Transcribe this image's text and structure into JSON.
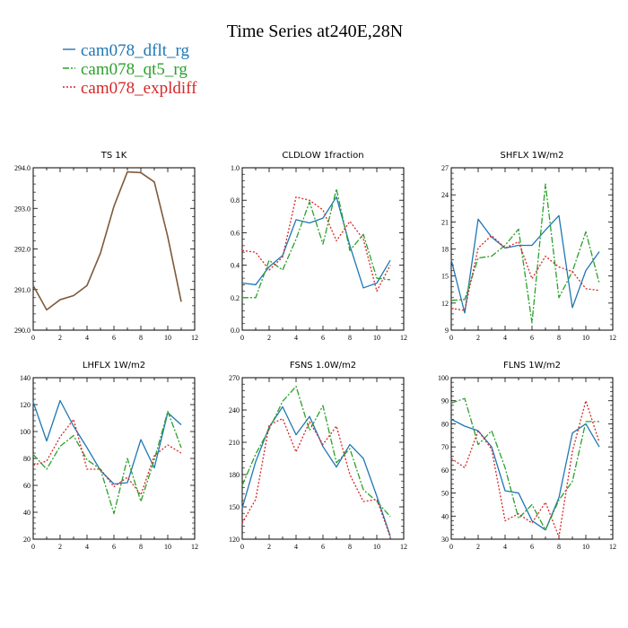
{
  "title": "Time Series at240E,28N",
  "legend": [
    {
      "label": "cam078_dflt_rg",
      "color": "#1f77b4",
      "dash": "solid"
    },
    {
      "label": "cam078_qt5_rg",
      "color": "#2ca02c",
      "dash": "dashdot"
    },
    {
      "label": "cam078_expldiff",
      "color": "#d62728",
      "dash": "dotted"
    }
  ],
  "chart_data": [
    {
      "type": "line",
      "title": "TS  1K",
      "x": [
        0,
        1,
        2,
        3,
        4,
        5,
        6,
        7,
        8,
        9,
        10,
        11
      ],
      "xlim": [
        0,
        12
      ],
      "xticks": [
        "0",
        "2",
        "4",
        "6",
        "8",
        "10",
        "12"
      ],
      "ylim": [
        290.0,
        294.0
      ],
      "yticks": [
        "290.0",
        "291.0",
        "292.0",
        "293.0",
        "294.0"
      ],
      "overlap_color": "#7f5a3a",
      "series": [
        {
          "name": "cam078_dflt_rg",
          "values": [
            291.1,
            290.5,
            290.75,
            290.85,
            291.1,
            291.9,
            293.05,
            293.9,
            293.88,
            293.65,
            292.3,
            290.7
          ]
        },
        {
          "name": "cam078_qt5_rg",
          "values": [
            291.1,
            290.5,
            290.75,
            290.85,
            291.1,
            291.9,
            293.05,
            293.9,
            293.88,
            293.65,
            292.3,
            290.7
          ]
        },
        {
          "name": "cam078_expldiff",
          "values": [
            291.1,
            290.5,
            290.75,
            290.85,
            291.1,
            291.9,
            293.05,
            293.9,
            293.88,
            293.65,
            292.3,
            290.7
          ]
        }
      ]
    },
    {
      "type": "line",
      "title": "CLDLOW  1fraction",
      "x": [
        0,
        1,
        2,
        3,
        4,
        5,
        6,
        7,
        8,
        9,
        10,
        11
      ],
      "xlim": [
        0,
        12
      ],
      "xticks": [
        "0",
        "2",
        "4",
        "6",
        "8",
        "10",
        "12"
      ],
      "ylim": [
        0.0,
        1.0
      ],
      "yticks": [
        "0.0",
        "0.2",
        "0.4",
        "0.6",
        "0.8",
        "1.0"
      ],
      "series": [
        {
          "name": "cam078_dflt_rg",
          "values": [
            0.29,
            0.28,
            0.39,
            0.46,
            0.68,
            0.66,
            0.69,
            0.82,
            0.52,
            0.26,
            0.29,
            0.43
          ]
        },
        {
          "name": "cam078_qt5_rg",
          "values": [
            0.2,
            0.2,
            0.43,
            0.37,
            0.56,
            0.79,
            0.53,
            0.87,
            0.49,
            0.59,
            0.32,
            0.31
          ]
        },
        {
          "name": "cam078_expldiff",
          "values": [
            0.49,
            0.48,
            0.37,
            0.45,
            0.82,
            0.8,
            0.74,
            0.55,
            0.67,
            0.56,
            0.24,
            0.4
          ]
        }
      ]
    },
    {
      "type": "line",
      "title": "SHFLX  1W/m2",
      "x": [
        0,
        1,
        2,
        3,
        4,
        5,
        6,
        7,
        8,
        9,
        10,
        11
      ],
      "xlim": [
        0,
        12
      ],
      "xticks": [
        "0",
        "2",
        "4",
        "6",
        "8",
        "10",
        "12"
      ],
      "ylim": [
        9,
        27
      ],
      "yticks": [
        "9",
        "12",
        "15",
        "18",
        "21",
        "24",
        "27"
      ],
      "series": [
        {
          "name": "cam078_dflt_rg",
          "values": [
            16.8,
            10.9,
            21.3,
            19.3,
            18.1,
            18.4,
            18.4,
            20.1,
            21.7,
            11.5,
            15.6,
            17.7
          ]
        },
        {
          "name": "cam078_qt5_rg",
          "values": [
            12.3,
            12.4,
            17.0,
            17.2,
            18.4,
            20.2,
            9.8,
            25.2,
            12.6,
            15.5,
            19.9,
            14.2
          ]
        },
        {
          "name": "cam078_expldiff",
          "values": [
            11.4,
            11.2,
            18.1,
            19.5,
            18.1,
            18.8,
            14.7,
            17.2,
            16.0,
            15.5,
            13.6,
            13.4
          ]
        }
      ]
    },
    {
      "type": "line",
      "title": "LHFLX  1W/m2",
      "x": [
        0,
        1,
        2,
        3,
        4,
        5,
        6,
        7,
        8,
        9,
        10,
        11
      ],
      "xlim": [
        0,
        12
      ],
      "xticks": [
        "0",
        "2",
        "4",
        "6",
        "8",
        "10",
        "12"
      ],
      "ylim": [
        20,
        140
      ],
      "yticks": [
        "20",
        "40",
        "60",
        "80",
        "100",
        "120",
        "140"
      ],
      "series": [
        {
          "name": "cam078_dflt_rg",
          "values": [
            122,
            93,
            123,
            104,
            88,
            71,
            61,
            62,
            94,
            73,
            114,
            105
          ]
        },
        {
          "name": "cam078_qt5_rg",
          "values": [
            83,
            72,
            89,
            97,
            79,
            72,
            39,
            80,
            48,
            79,
            115,
            88
          ]
        },
        {
          "name": "cam078_expldiff",
          "values": [
            75,
            78,
            96,
            109,
            72,
            72,
            59,
            66,
            53,
            82,
            90,
            84
          ]
        }
      ]
    },
    {
      "type": "line",
      "title": "FSNS  1.0W/m2",
      "x": [
        0,
        1,
        2,
        3,
        4,
        5,
        6,
        7,
        8,
        9,
        10,
        11
      ],
      "xlim": [
        0,
        12
      ],
      "xticks": [
        "0",
        "2",
        "4",
        "6",
        "8",
        "10",
        "12"
      ],
      "ylim": [
        120,
        270
      ],
      "yticks": [
        "120",
        "150",
        "180",
        "210",
        "240",
        "270"
      ],
      "series": [
        {
          "name": "cam078_dflt_rg",
          "values": [
            149,
            192,
            224,
            243,
            217,
            234,
            206,
            187,
            208,
            195,
            160,
            123
          ]
        },
        {
          "name": "cam078_qt5_rg",
          "values": [
            170,
            199,
            222,
            248,
            262,
            221,
            244,
            191,
            204,
            166,
            155,
            141
          ]
        },
        {
          "name": "cam078_expldiff",
          "values": [
            135,
            157,
            226,
            232,
            201,
            229,
            208,
            225,
            180,
            155,
            157,
            122
          ]
        }
      ]
    },
    {
      "type": "line",
      "title": "FLNS  1W/m2",
      "x": [
        0,
        1,
        2,
        3,
        4,
        5,
        6,
        7,
        8,
        9,
        10,
        11
      ],
      "xlim": [
        0,
        12
      ],
      "xticks": [
        "0",
        "2",
        "4",
        "6",
        "8",
        "10",
        "12"
      ],
      "ylim": [
        30,
        100
      ],
      "yticks": [
        "30",
        "40",
        "50",
        "60",
        "70",
        "80",
        "90",
        "100"
      ],
      "series": [
        {
          "name": "cam078_dflt_rg",
          "values": [
            82,
            79,
            77,
            70,
            51,
            50,
            38,
            34,
            48,
            76,
            80,
            70
          ]
        },
        {
          "name": "cam078_qt5_rg",
          "values": [
            89,
            91,
            71,
            77,
            61,
            39,
            45,
            34,
            47,
            55,
            81,
            81
          ]
        },
        {
          "name": "cam078_expldiff",
          "values": [
            65,
            61,
            77,
            69,
            38,
            41,
            37,
            46,
            31,
            68,
            90,
            72
          ]
        }
      ]
    }
  ]
}
